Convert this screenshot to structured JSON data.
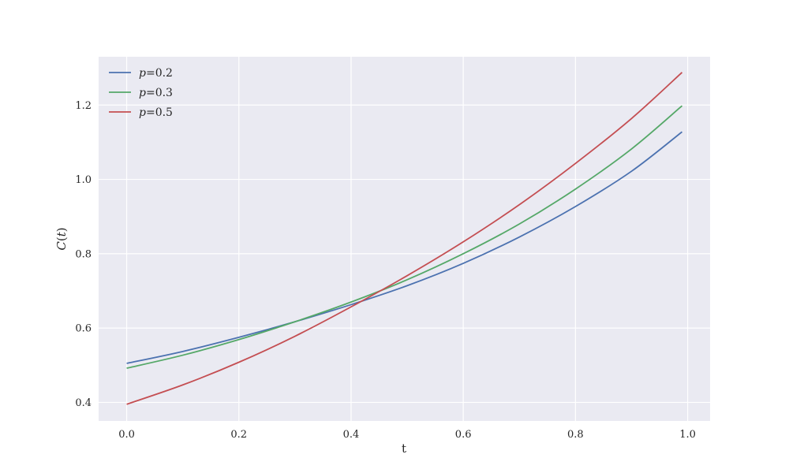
{
  "chart_data": {
    "type": "line",
    "title": "",
    "xlabel": "t",
    "ylabel": "C(t)",
    "ylabel_italic_parts": [
      "C",
      "(",
      "t",
      ")"
    ],
    "xlim": [
      -0.05,
      1.04
    ],
    "ylim": [
      0.35,
      1.33
    ],
    "xticks": [
      0.0,
      0.2,
      0.4,
      0.6,
      0.8,
      1.0
    ],
    "xtick_labels": [
      "0.0",
      "0.2",
      "0.4",
      "0.6",
      "0.8",
      "1.0"
    ],
    "yticks": [
      0.4,
      0.6,
      0.8,
      1.0,
      1.2
    ],
    "ytick_labels": [
      "0.4",
      "0.6",
      "0.8",
      "1.0",
      "1.2"
    ],
    "grid": true,
    "background": "#eaeaf2",
    "grid_color": "#ffffff",
    "legend_position": "top-left",
    "x": [
      0.0,
      0.1,
      0.2,
      0.3,
      0.4,
      0.5,
      0.6,
      0.7,
      0.8,
      0.9,
      0.99
    ],
    "series": [
      {
        "name": "p=0.2",
        "legend_var": "p",
        "legend_val": "=0.2",
        "color": "#4c72b0",
        "values": [
          0.505,
          0.537,
          0.575,
          0.617,
          0.663,
          0.714,
          0.774,
          0.845,
          0.927,
          1.022,
          1.128
        ]
      },
      {
        "name": "p=0.3",
        "legend_var": "p",
        "legend_val": "=0.3",
        "color": "#55a868",
        "values": [
          0.492,
          0.527,
          0.569,
          0.617,
          0.67,
          0.73,
          0.8,
          0.88,
          0.974,
          1.082,
          1.198
        ]
      },
      {
        "name": "p=0.5",
        "legend_var": "p",
        "legend_val": "=0.5",
        "color": "#c44e52",
        "values": [
          0.395,
          0.447,
          0.508,
          0.578,
          0.657,
          0.741,
          0.832,
          0.932,
          1.043,
          1.164,
          1.288
        ]
      }
    ]
  }
}
